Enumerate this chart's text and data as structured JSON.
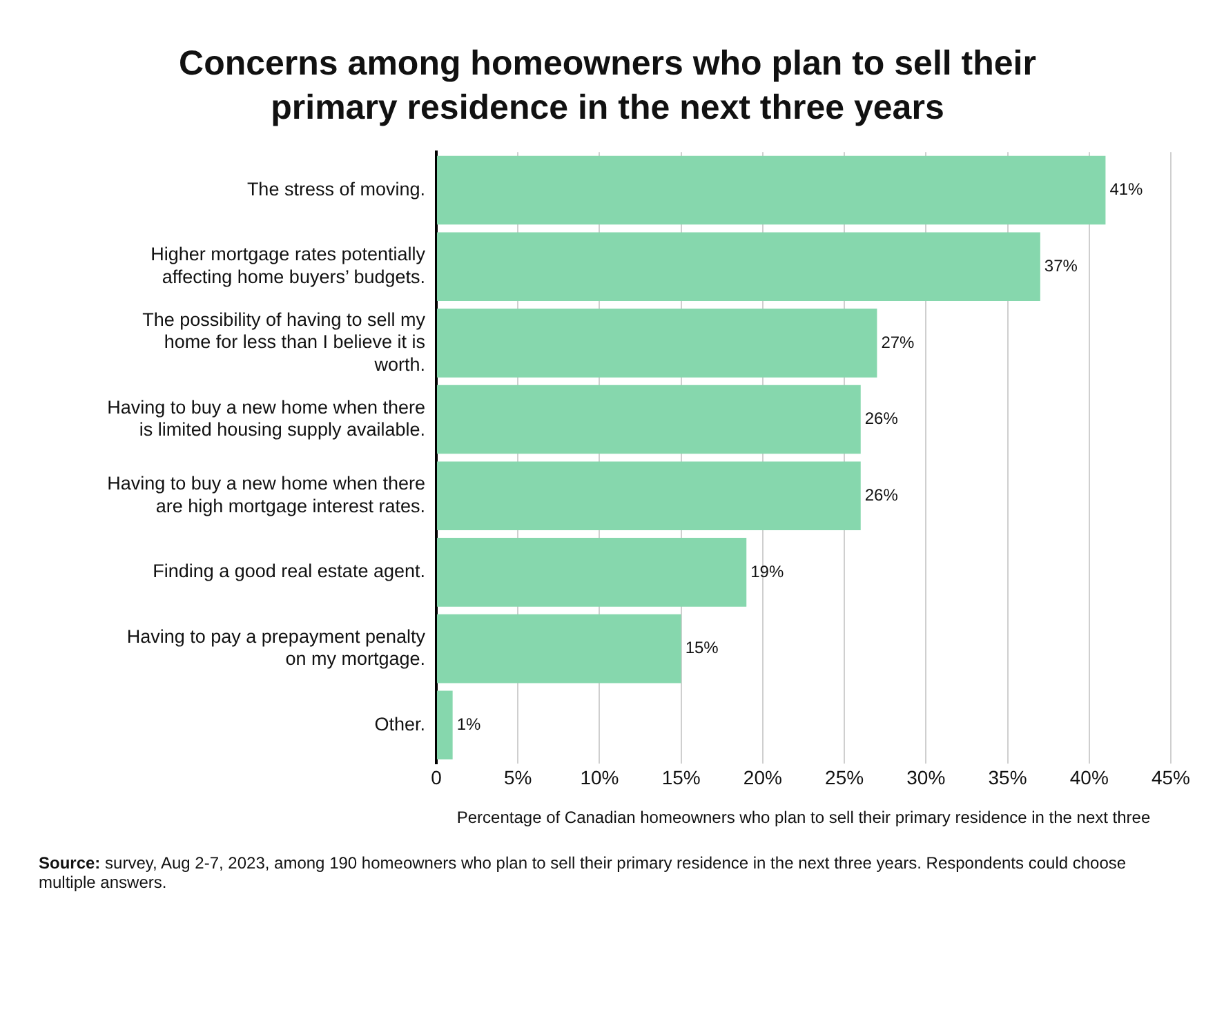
{
  "chart_data": {
    "type": "bar",
    "orientation": "horizontal",
    "title": "Concerns among homeowners who plan to sell their primary residence in the next three years",
    "xlabel": "Percentage of Canadian homeowners who plan to sell their primary residence in the next three",
    "categories": [
      "The stress of moving.",
      "Higher mortgage rates potentially affecting home buyers’ budgets.",
      "The possibility of having to sell my home for less than I believe it is worth.",
      "Having to buy a new home when there is limited housing supply available.",
      "Having to buy a new home when there are high mortgage interest rates.",
      "Finding a good real estate agent.",
      "Having to pay a prepayment penalty on my mortgage.",
      "Other."
    ],
    "values": [
      41,
      37,
      27,
      26,
      26,
      19,
      15,
      1
    ],
    "value_labels": [
      "41%",
      "37%",
      "27%",
      "26%",
      "26%",
      "19%",
      "15%",
      "1%"
    ],
    "color": "#86d7ad",
    "xlim": [
      0,
      45
    ],
    "xticks": [
      0,
      {
        "value": 5,
        "label": "5%"
      },
      {
        "value": 10,
        "label": "10%"
      },
      {
        "value": 15,
        "label": "15%"
      },
      {
        "value": 20,
        "label": "20%"
      },
      {
        "value": 25,
        "label": "25%"
      },
      {
        "value": 30,
        "label": "30%"
      },
      {
        "value": 35,
        "label": "35%"
      },
      {
        "value": 40,
        "label": "40%"
      },
      {
        "value": 45,
        "label": "45%"
      }
    ],
    "grid": "x",
    "legend": false,
    "annotations": [
      "Source: survey, Aug 2-7, 2023, among 190 homeowners who plan to sell their primary residence in the next three years. Respondents could choose multiple answers."
    ]
  }
}
